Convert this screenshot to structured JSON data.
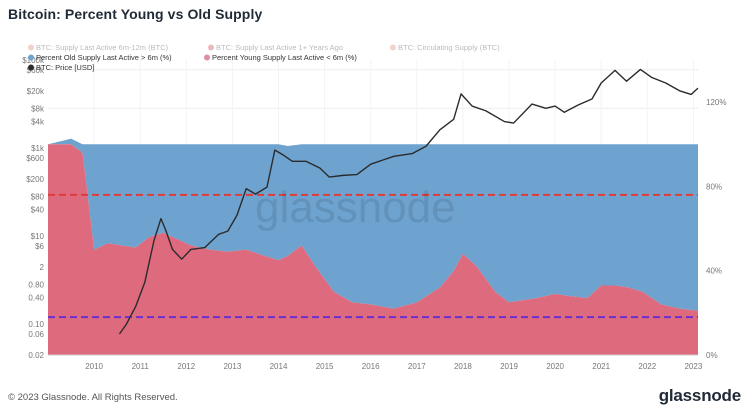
{
  "header": {
    "title": "Bitcoin: Percent Young vs Old Supply"
  },
  "footer": {
    "copyright": "© 2023 Glassnode. All Rights Reserved.",
    "logo": "glassnode"
  },
  "watermark": "glassnode",
  "colors": {
    "old_supply": "#6ea3d0",
    "young_supply": "#de6a7e",
    "price": "#2b2b2b",
    "red_dashed": "#e03a3a",
    "purple_dashed": "#6b2fd0",
    "disabled_series": "#e8a39a"
  },
  "chart_data": {
    "type": "area",
    "title": "Bitcoin: Percent Young vs Old Supply",
    "legend": [
      {
        "name": "BTC: Supply Last Active 6m-12m (BTC)",
        "color": "#e8a39a",
        "enabled": false
      },
      {
        "name": "BTC: Supply Last Active 1+ Years Ago",
        "color": "#d27580",
        "enabled": false
      },
      {
        "name": "BTC: Circulating Supply (BTC)",
        "color": "#e8a39a",
        "enabled": false
      },
      {
        "name": "Percent Old Supply Last Active > 6m (%)",
        "color": "#6ea3d0",
        "enabled": true
      },
      {
        "name": "Percent Young Supply Last Active < 6m (%)",
        "color": "#de8ea0",
        "enabled": true
      },
      {
        "name": "BTC: Price [USD]",
        "color": "#2b2b2b",
        "enabled": true
      }
    ],
    "legend_placement": "top-left",
    "x_axis": {
      "ticks": [
        "2010",
        "2011",
        "2012",
        "2013",
        "2014",
        "2015",
        "2016",
        "2017",
        "2018",
        "2019",
        "2020",
        "2021",
        "2022",
        "2023"
      ],
      "range": [
        2009.0,
        2023.1
      ]
    },
    "y_left": {
      "scale": "log",
      "label": "",
      "ticks": [
        "0.02",
        "0.06",
        "0.10",
        "0.40",
        "0.80",
        "2",
        "$6",
        "$10",
        "$40",
        "$80",
        "$200",
        "$600",
        "$1k",
        "$4k",
        "$8k",
        "$20k",
        "$60k",
        "$100k"
      ],
      "range": [
        0.02,
        100000
      ]
    },
    "y_right": {
      "label": "",
      "ticks": [
        "0%",
        "40%",
        "80%",
        "120%"
      ],
      "range": [
        0,
        140
      ]
    },
    "reference_lines": [
      {
        "name": "red-dashed",
        "value_percent": 76,
        "color": "#e03a3a"
      },
      {
        "name": "purple-dashed",
        "value_percent": 18,
        "color": "#6b2fd0"
      }
    ],
    "series_young_percent": {
      "name": "Percent Young Supply Last Active < 6m (%)",
      "x": [
        2009.0,
        2009.5,
        2009.75,
        2010.0,
        2010.3,
        2010.6,
        2010.9,
        2011.2,
        2011.5,
        2011.8,
        2012.1,
        2012.5,
        2012.9,
        2013.3,
        2013.7,
        2014.0,
        2014.2,
        2014.5,
        2014.8,
        2015.2,
        2015.6,
        2016.0,
        2016.5,
        2017.0,
        2017.5,
        2017.8,
        2018.0,
        2018.3,
        2018.7,
        2019.0,
        2019.3,
        2019.6,
        2020.0,
        2020.3,
        2020.7,
        2021.0,
        2021.3,
        2021.6,
        2021.9,
        2022.3,
        2022.7,
        2023.1
      ],
      "values": [
        100,
        100,
        96,
        50,
        53,
        52,
        51,
        56,
        58,
        55,
        52,
        50,
        49,
        50,
        47,
        45,
        47,
        52,
        42,
        30,
        25,
        24,
        22,
        25,
        32,
        40,
        48,
        42,
        30,
        25,
        26,
        27,
        29,
        28,
        27,
        33,
        33,
        32,
        30,
        24,
        22,
        21
      ]
    },
    "series_old_percent": {
      "name": "Percent Old Supply Last Active > 6m (%)",
      "note": "stacked above young supply; old = 100 - young",
      "x": [
        2009.0,
        2009.75,
        2010.0,
        2010.3,
        2010.6,
        2010.9,
        2011.2,
        2011.5,
        2011.8,
        2012.1,
        2012.5,
        2012.9,
        2013.3,
        2013.7,
        2014.0,
        2014.5,
        2014.8,
        2015.2,
        2015.6,
        2016.0,
        2016.5,
        2017.0,
        2017.5,
        2017.8,
        2018.0,
        2018.3,
        2018.7,
        2019.0,
        2019.3,
        2019.6,
        2020.0,
        2020.3,
        2020.7,
        2021.0,
        2021.3,
        2021.6,
        2021.9,
        2022.3,
        2022.7,
        2023.1
      ],
      "values": [
        0,
        4,
        50,
        47,
        48,
        49,
        44,
        42,
        45,
        48,
        50,
        51,
        50,
        53,
        55,
        48,
        58,
        70,
        75,
        76,
        78,
        75,
        68,
        60,
        52,
        58,
        70,
        75,
        74,
        73,
        71,
        72,
        73,
        67,
        67,
        68,
        70,
        76,
        78,
        79
      ]
    },
    "series_price": {
      "name": "BTC: Price [USD]",
      "x": [
        2010.55,
        2010.7,
        2010.9,
        2011.1,
        2011.3,
        2011.45,
        2011.55,
        2011.7,
        2011.9,
        2012.1,
        2012.4,
        2012.7,
        2012.9,
        2013.1,
        2013.3,
        2013.5,
        2013.75,
        2013.92,
        2014.1,
        2014.3,
        2014.6,
        2014.9,
        2015.1,
        2015.4,
        2015.7,
        2016.0,
        2016.5,
        2016.9,
        2017.2,
        2017.5,
        2017.8,
        2017.96,
        2018.2,
        2018.5,
        2018.9,
        2019.1,
        2019.5,
        2019.8,
        2020.0,
        2020.2,
        2020.5,
        2020.8,
        2021.0,
        2021.3,
        2021.55,
        2021.85,
        2022.1,
        2022.4,
        2022.7,
        2022.95,
        2023.1
      ],
      "values": [
        0.06,
        0.1,
        0.25,
        0.9,
        8,
        25,
        14,
        5,
        3,
        5,
        5.5,
        11,
        13,
        30,
        120,
        90,
        130,
        900,
        700,
        500,
        500,
        350,
        220,
        240,
        250,
        430,
        650,
        750,
        1100,
        2600,
        4500,
        17000,
        9000,
        7000,
        4000,
        3700,
        10000,
        8000,
        9000,
        6500,
        9500,
        13000,
        30000,
        58000,
        33000,
        61000,
        40000,
        30000,
        20000,
        16500,
        23000
      ]
    }
  }
}
